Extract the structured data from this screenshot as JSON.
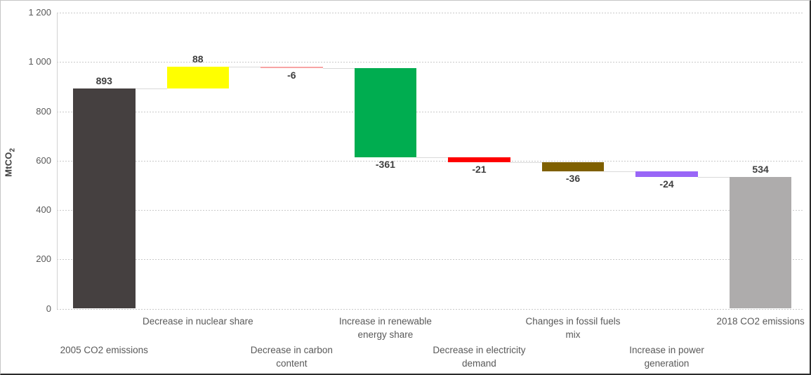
{
  "chart_data": {
    "type": "waterfall-bar",
    "title": "",
    "y_axis": {
      "title_main": "MtCO",
      "title_sub": "2",
      "ylim": [
        0,
        1200
      ],
      "tick_step": 200,
      "gridlines": "fine-dashed",
      "ticks": [
        {
          "value": 0,
          "label": "0"
        },
        {
          "value": 200,
          "label": "200"
        },
        {
          "value": 400,
          "label": "400"
        },
        {
          "value": 600,
          "label": "600"
        },
        {
          "value": 800,
          "label": "800"
        },
        {
          "value": 1000,
          "label": "1 000"
        },
        {
          "value": 1200,
          "label": "1 200"
        }
      ]
    },
    "bars": [
      {
        "category": "2005 CO2 emissions",
        "category_lines": [
          "2005 CO2 emissions"
        ],
        "label_row": "lower",
        "role": "total",
        "from": 0,
        "to": 893,
        "value": 893,
        "value_label": "893",
        "value_label_pos": "above",
        "color": "#454040"
      },
      {
        "category": "Decrease in nuclear share",
        "category_lines": [
          "Decrease in nuclear share"
        ],
        "label_row": "upper",
        "role": "increase",
        "from": 893,
        "to": 981,
        "value": 88,
        "value_label": "88",
        "value_label_pos": "above",
        "color": "#ffff00"
      },
      {
        "category": "Decrease in carbon content",
        "category_lines": [
          "Decrease in carbon",
          "content"
        ],
        "label_row": "lower",
        "role": "decrease",
        "from": 981,
        "to": 975,
        "value": -6,
        "value_label": "-6",
        "value_label_pos": "below",
        "color": "#f7a4a4"
      },
      {
        "category": "Increase in renewable energy share",
        "category_lines": [
          "Increase in renewable",
          "energy share"
        ],
        "label_row": "upper",
        "role": "decrease",
        "from": 975,
        "to": 614,
        "value": -361,
        "value_label": "-361",
        "value_label_pos": "below",
        "color": "#00ad50"
      },
      {
        "category": "Decrease in electricity demand",
        "category_lines": [
          "Decrease in electricity",
          "demand"
        ],
        "label_row": "lower",
        "role": "decrease",
        "from": 614,
        "to": 593,
        "value": -21,
        "value_label": "-21",
        "value_label_pos": "below",
        "color": "#fe0000"
      },
      {
        "category": "Changes in  fossil fuels mix",
        "category_lines": [
          "Changes in  fossil fuels",
          "mix"
        ],
        "label_row": "upper",
        "role": "decrease",
        "from": 593,
        "to": 557,
        "value": -36,
        "value_label": "-36",
        "value_label_pos": "below",
        "color": "#7f6000"
      },
      {
        "category": "Increase in power generation",
        "category_lines": [
          "Increase in power",
          "generation"
        ],
        "label_row": "lower",
        "role": "decrease",
        "from": 557,
        "to": 533,
        "value": -24,
        "value_label": "-24",
        "value_label_pos": "below",
        "color": "#9966f7"
      },
      {
        "category": "2018 CO2 emissions",
        "category_lines": [
          "2018 CO2 emissions"
        ],
        "label_row": "upper",
        "role": "total",
        "from": 0,
        "to": 534,
        "value": 534,
        "value_label": "534",
        "value_label_pos": "above",
        "color": "#aeacac",
        "pattern": "dotted"
      }
    ],
    "colors": {
      "gridline": "#c9c9c9",
      "connector": "#d9d9d9",
      "axis_text": "#595959",
      "value_label_text": "#3f3f3f"
    }
  }
}
